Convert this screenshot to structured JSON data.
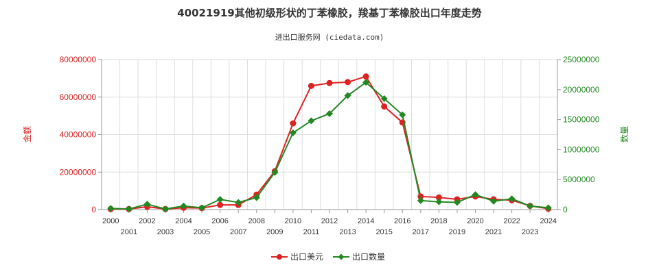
{
  "chart_data": {
    "type": "line",
    "title": "40021919其他初级形状的丁苯橡胶，羧基丁苯橡胶出口年度走势",
    "subtitle": "进出口服务网 (ciedata.com)",
    "xlabel": "",
    "ylabel_left": "金额",
    "ylabel_right": "数量",
    "ylim_left": [
      0,
      80000000
    ],
    "ylim_right": [
      0,
      25000000
    ],
    "yticks_left": [
      "0",
      "20000000",
      "40000000",
      "60000000",
      "80000000"
    ],
    "yticks_right": [
      "0",
      "5000000",
      "10000000",
      "15000000",
      "20000000",
      "25000000"
    ],
    "grid": true,
    "legend_position": "bottom",
    "x": [
      "2000",
      "2001",
      "2002",
      "2003",
      "2004",
      "2005",
      "2006",
      "2007",
      "2008",
      "2009",
      "2010",
      "2011",
      "2012",
      "2013",
      "2014",
      "2015",
      "2016",
      "2017",
      "2018",
      "2019",
      "2020",
      "2021",
      "2022",
      "2023",
      "2024"
    ],
    "series": [
      {
        "name": "出口美元",
        "axis": "left",
        "color": "#dd2222",
        "values": [
          300000,
          300000,
          1500000,
          300000,
          1000000,
          800000,
          2500000,
          2500000,
          8000000,
          20500000,
          46000000,
          66000000,
          67500000,
          68000000,
          71000000,
          55000000,
          46500000,
          7000000,
          6500000,
          5500000,
          7000000,
          5500000,
          5000000,
          2000000,
          500000
        ]
      },
      {
        "name": "出口数量",
        "axis": "right",
        "color": "#228822",
        "values": [
          200000,
          100000,
          900000,
          100000,
          600000,
          300000,
          1700000,
          1200000,
          2000000,
          6200000,
          12800000,
          14800000,
          16000000,
          19000000,
          21200000,
          18500000,
          15800000,
          1500000,
          1300000,
          1200000,
          2500000,
          1400000,
          1800000,
          600000,
          300000
        ]
      }
    ]
  }
}
